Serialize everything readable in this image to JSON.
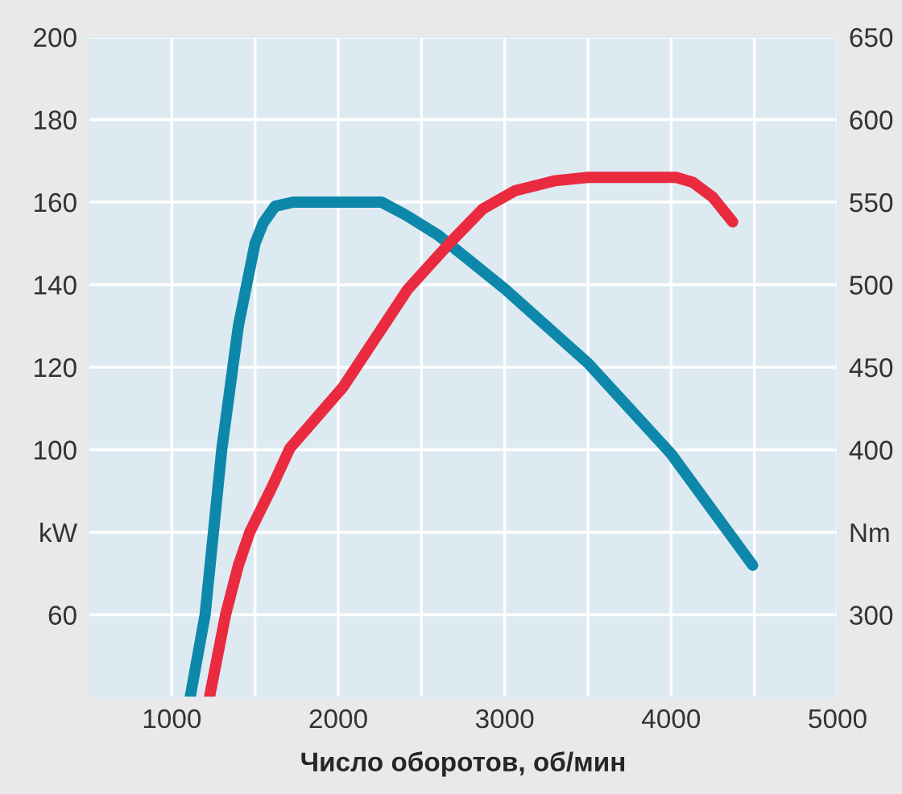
{
  "chart_data": {
    "type": "line",
    "xlabel": "Число оборотов, об/мин",
    "xlim": [
      500,
      5000
    ],
    "xticks": [
      {
        "value": 1000,
        "label": "1000"
      },
      {
        "value": 1500,
        "label": null
      },
      {
        "value": 2000,
        "label": "2000"
      },
      {
        "value": 2500,
        "label": null
      },
      {
        "value": 3000,
        "label": "3000"
      },
      {
        "value": 3500,
        "label": null
      },
      {
        "value": 4000,
        "label": "4000"
      },
      {
        "value": 4500,
        "label": null
      },
      {
        "value": 5000,
        "label": "5000"
      }
    ],
    "ylim": [
      40,
      200
    ],
    "yticks": [
      60,
      {
        "value": 80,
        "label": "kW"
      },
      100,
      120,
      140,
      160,
      180,
      200
    ],
    "y2lim": [
      250,
      650
    ],
    "y2ticks": [
      300,
      {
        "value": 350,
        "label": "Nm"
      },
      400,
      450,
      500,
      550,
      600,
      650
    ],
    "grid": true,
    "series": [
      {
        "color": "#0e88aa",
        "x": [
          1110,
          1200,
          1300,
          1400,
          1450,
          1500,
          1550,
          1620,
          1730,
          2000,
          2260,
          2400,
          2600,
          3000,
          3500,
          4000,
          4490
        ],
        "values": [
          40,
          60,
          100,
          130,
          140,
          150,
          155,
          159,
          160,
          160,
          160,
          157,
          152,
          139,
          121,
          99,
          72
        ]
      },
      {
        "color": "#ea2a3e",
        "axis": "y2",
        "x": [
          1226,
          1323,
          1400,
          1468,
          1600,
          1710,
          2029,
          2416,
          2677,
          2870,
          3064,
          3306,
          3500,
          4030,
          4130,
          4250,
          4370
        ],
        "values": [
          250,
          300,
          330,
          350,
          377,
          401,
          438,
          497,
          526,
          546,
          557,
          563,
          565,
          565,
          562,
          553,
          538
        ]
      }
    ]
  }
}
